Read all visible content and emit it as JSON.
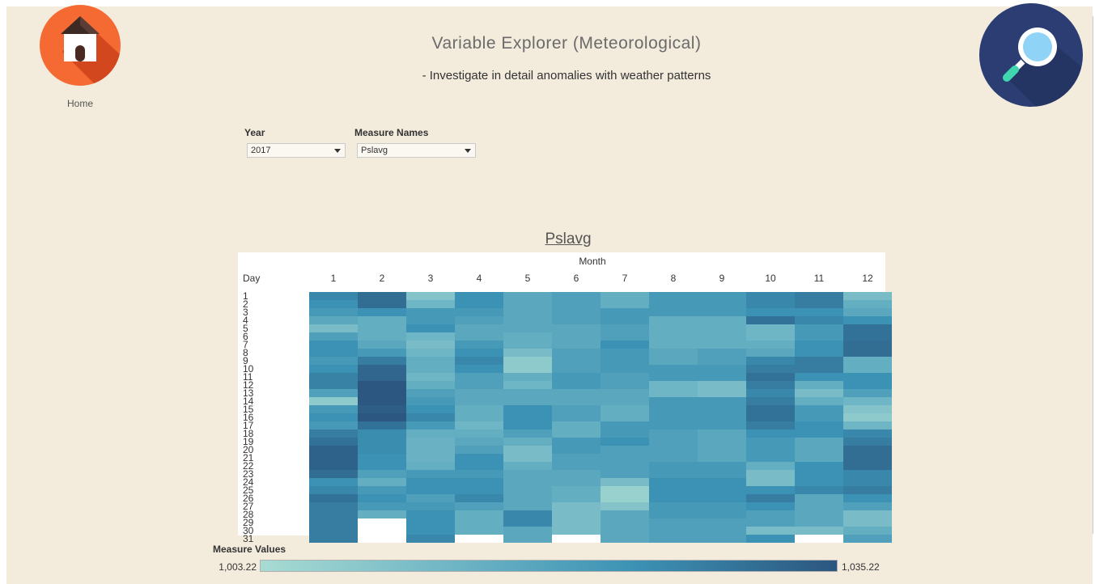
{
  "header": {
    "title": "Variable Explorer (Meteorological)",
    "subtitle": "- Investigate in detail anomalies with weather patterns",
    "home_label": "Home",
    "home_icon": "house-icon",
    "search_icon": "magnifier-icon"
  },
  "filters": {
    "year": {
      "label": "Year",
      "value": "2017"
    },
    "measure": {
      "label": "Measure Names",
      "value": "Pslavg"
    }
  },
  "colors": {
    "background": "#f3ebdc",
    "home_logo": "#f46a32",
    "search_logo": "#2b3d72",
    "scale_low": "#a8dbd2",
    "scale_high": "#2c567f"
  },
  "chart_data": {
    "type": "heatmap",
    "title": "Pslavg",
    "column_header": "Month",
    "row_header": "Day",
    "columns": [
      "1",
      "2",
      "3",
      "4",
      "5",
      "6",
      "7",
      "8",
      "9",
      "10",
      "11",
      "12"
    ],
    "rows": [
      "1",
      "2",
      "3",
      "4",
      "5",
      "6",
      "7",
      "8",
      "9",
      "10",
      "11",
      "12",
      "13",
      "14",
      "15",
      "16",
      "17",
      "18",
      "19",
      "20",
      "21",
      "22",
      "23",
      "24",
      "25",
      "26",
      "27",
      "28",
      "29",
      "30",
      "31"
    ],
    "values_by_month": [
      [
        1026,
        1024,
        1022,
        1018,
        1012,
        1020,
        1024,
        1024,
        1022,
        1024,
        1027,
        1027,
        1020,
        1008,
        1022,
        1024,
        1022,
        1028,
        1030,
        1033,
        1033,
        1033,
        1031,
        1024,
        1026,
        1030,
        1028,
        1028,
        1028,
        1028,
        1028
      ],
      [
        1031,
        1031,
        1024,
        1016,
        1016,
        1016,
        1018,
        1022,
        1028,
        1032,
        1032,
        1035,
        1035,
        1035,
        1034,
        1035,
        1030,
        1025,
        1025,
        1025,
        1024,
        1024,
        1020,
        1016,
        1022,
        1024,
        1022,
        1016,
        null,
        null,
        null
      ],
      [
        1010,
        1014,
        1022,
        1022,
        1024,
        1014,
        1012,
        1014,
        1016,
        1016,
        1014,
        1016,
        1020,
        1022,
        1024,
        1026,
        1022,
        1016,
        1015,
        1015,
        1015,
        1016,
        1022,
        1024,
        1024,
        1020,
        1022,
        1024,
        1024,
        1024,
        1026
      ],
      [
        1024,
        1024,
        1022,
        1020,
        1018,
        1018,
        1022,
        1024,
        1026,
        1024,
        1020,
        1020,
        1018,
        1018,
        1016,
        1016,
        1014,
        1016,
        1018,
        1020,
        1024,
        1024,
        1022,
        1024,
        1024,
        1026,
        1020,
        1016,
        1016,
        1016,
        null
      ],
      [
        1018,
        1018,
        1018,
        1018,
        1018,
        1016,
        1016,
        1012,
        1008,
        1008,
        1016,
        1014,
        1018,
        1018,
        1024,
        1024,
        1024,
        1020,
        1016,
        1012,
        1012,
        1016,
        1018,
        1018,
        1018,
        1018,
        1018,
        1026,
        1026,
        1018,
        1018
      ],
      [
        1020,
        1020,
        1020,
        1020,
        1018,
        1018,
        1018,
        1020,
        1020,
        1020,
        1022,
        1022,
        1018,
        1018,
        1020,
        1020,
        1016,
        1016,
        1022,
        1022,
        1020,
        1020,
        1018,
        1018,
        1016,
        1016,
        1012,
        1012,
        1012,
        1012,
        null
      ],
      [
        1016,
        1016,
        1022,
        1022,
        1020,
        1020,
        1024,
        1022,
        1022,
        1022,
        1020,
        1020,
        1018,
        1018,
        1016,
        1016,
        1022,
        1022,
        1024,
        1020,
        1020,
        1020,
        1020,
        1012,
        1006,
        1006,
        1010,
        1018,
        1018,
        1018,
        1018
      ],
      [
        1022,
        1022,
        1022,
        1016,
        1016,
        1016,
        1016,
        1018,
        1018,
        1022,
        1022,
        1014,
        1014,
        1022,
        1022,
        1022,
        1022,
        1020,
        1020,
        1020,
        1020,
        1022,
        1022,
        1024,
        1024,
        1024,
        1022,
        1022,
        1020,
        1020,
        1020
      ],
      [
        1022,
        1022,
        1022,
        1016,
        1016,
        1016,
        1016,
        1020,
        1020,
        1022,
        1022,
        1012,
        1012,
        1022,
        1022,
        1022,
        1022,
        1018,
        1018,
        1018,
        1018,
        1022,
        1022,
        1024,
        1024,
        1024,
        1022,
        1022,
        1020,
        1020,
        1020
      ],
      [
        1026,
        1026,
        1024,
        1030,
        1014,
        1014,
        1016,
        1018,
        1026,
        1028,
        1030,
        1028,
        1026,
        1028,
        1030,
        1030,
        1028,
        1024,
        1022,
        1022,
        1022,
        1016,
        1012,
        1012,
        1024,
        1028,
        1024,
        1020,
        1020,
        1012,
        1024
      ],
      [
        1028,
        1028,
        1024,
        1026,
        1022,
        1022,
        1024,
        1024,
        1028,
        1028,
        1024,
        1016,
        1012,
        1016,
        1022,
        1022,
        1024,
        1024,
        1018,
        1018,
        1018,
        1024,
        1024,
        1024,
        1026,
        1018,
        1018,
        1018,
        1018,
        1012,
        null
      ],
      [
        1012,
        1016,
        1018,
        1024,
        1030,
        1030,
        1031,
        1031,
        1016,
        1016,
        1024,
        1024,
        1020,
        1014,
        1010,
        1008,
        1014,
        1026,
        1028,
        1031,
        1031,
        1031,
        1026,
        1026,
        1028,
        1024,
        1020,
        1012,
        1012,
        1016,
        1020
      ]
    ],
    "legend_title": "Measure Values",
    "scale_min": 1003.22,
    "scale_max": 1035.22,
    "scale_min_label": "1,003.22",
    "scale_max_label": "1,035.22"
  }
}
